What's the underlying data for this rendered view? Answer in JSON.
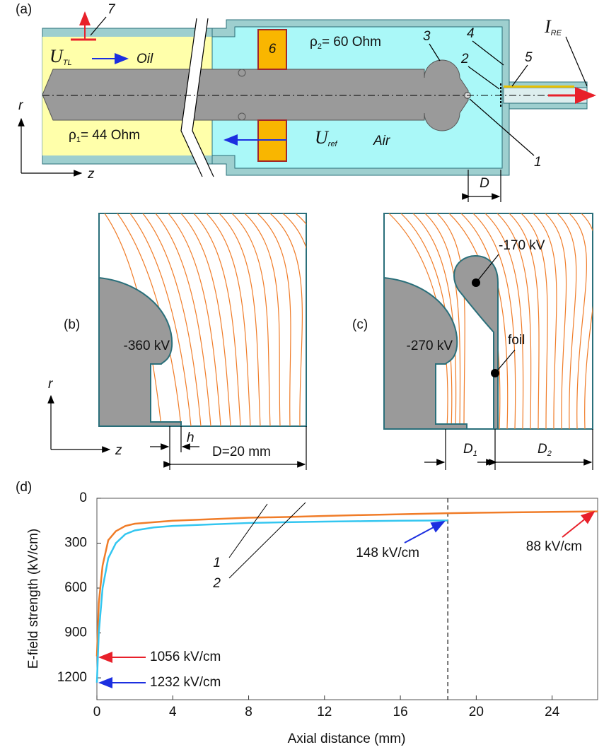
{
  "panel_a": {
    "label": "(a)",
    "part_7": "7",
    "u_tl": {
      "symbol": "U",
      "sub": "TL"
    },
    "oil": "Oil",
    "part_6": "6",
    "rho_2": {
      "symbol": "ρ",
      "sub": "2",
      "rest": "= 60 Ohm"
    },
    "part_3": "3",
    "part_4": "4",
    "part_2": "2",
    "part_5": "5",
    "i_re": {
      "symbol": "I",
      "sub": "RE"
    },
    "rho_1": {
      "symbol": "ρ",
      "sub": "1",
      "rest": "= 44 Ohm"
    },
    "u_ref": {
      "symbol": "U",
      "sub": "ref"
    },
    "air": "Air",
    "part_1": "1",
    "axis_r": "r",
    "axis_z": "z",
    "gap": "D"
  },
  "panel_b": {
    "label": "(b)",
    "potential": "-360 kV",
    "axis_r": "r",
    "axis_z": "z",
    "gap": "h",
    "length": "D=20 mm"
  },
  "panel_c": {
    "label": "(c)",
    "floating_potential": "-170 kV",
    "foil": "foil",
    "potential": "-270 kV",
    "gap_1": {
      "symbol": "D",
      "sub": "1"
    },
    "gap_2": {
      "symbol": "D",
      "sub": "2"
    }
  },
  "chart_data": {
    "type": "line",
    "label": "(d)",
    "x_label": "Axial distance (mm)",
    "y_label": "E-field strength (kV/cm)",
    "xlim": [
      0,
      26.4
    ],
    "ylim": [
      1346,
      0
    ],
    "xticks": [
      0,
      4,
      8,
      12,
      16,
      20,
      24
    ],
    "yticks": [
      0,
      300,
      600,
      900,
      1200
    ],
    "marker_line_x": 18.5,
    "series": [
      {
        "name": "1",
        "color": "#f07c28",
        "x": [
          0,
          0.1,
          0.3,
          0.6,
          1,
          1.5,
          2,
          3,
          4,
          6,
          8,
          10,
          12,
          14,
          16,
          18.5,
          20,
          22,
          24,
          26.4
        ],
        "values": [
          1056,
          700,
          450,
          280,
          220,
          185,
          170,
          160,
          150,
          140,
          130,
          125,
          118,
          112,
          107,
          100,
          97,
          94,
          91,
          88
        ]
      },
      {
        "name": "2",
        "color": "#33c6f0",
        "x": [
          0,
          0.1,
          0.3,
          0.6,
          1,
          1.5,
          2,
          3,
          4,
          6,
          8,
          10,
          12,
          14,
          16,
          18.5
        ],
        "values": [
          1232,
          900,
          600,
          400,
          300,
          240,
          215,
          195,
          185,
          175,
          165,
          160,
          156,
          153,
          150,
          148
        ]
      }
    ],
    "annotations": [
      {
        "text": "148 kV/cm",
        "color": "#1c2fe0"
      },
      {
        "text": "88 kV/cm",
        "color": "#e8202a"
      },
      {
        "text": "1056 kV/cm",
        "color": "#e8202a"
      },
      {
        "text": "1232 kV/cm",
        "color": "#1c2fe0"
      }
    ]
  }
}
